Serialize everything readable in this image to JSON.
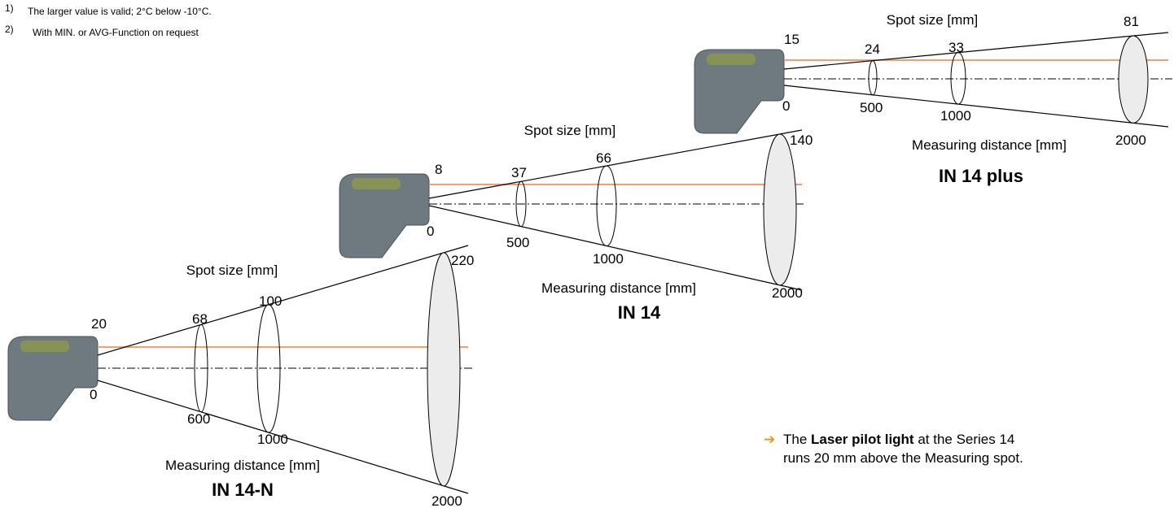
{
  "footnotes": [
    {
      "marker": "1)",
      "text": "The larger value is valid; 2°C below -10°C."
    },
    {
      "marker": "2)",
      "text": "With MIN. or AVG-Function on request"
    }
  ],
  "diagrams": [
    {
      "model": "IN 14-N",
      "spot_label": "Spot size [mm]",
      "distance_label": "Measuring distance [mm]",
      "spot_sizes": [
        20,
        68,
        100,
        220
      ],
      "distances": [
        0,
        600,
        1000,
        2000
      ]
    },
    {
      "model": "IN 14",
      "spot_label": "Spot size [mm]",
      "distance_label": "Measuring distance [mm]",
      "spot_sizes": [
        8,
        37,
        66,
        140
      ],
      "distances": [
        0,
        500,
        1000,
        2000
      ]
    },
    {
      "model": "IN 14 plus",
      "spot_label": "Spot size [mm]",
      "distance_label": "Measuring distance [mm]",
      "spot_sizes": [
        15,
        24,
        33,
        81
      ],
      "distances": [
        0,
        500,
        1000,
        2000
      ]
    }
  ],
  "note": {
    "parts": [
      "The ",
      "Laser pilot light",
      " at the Series 14",
      "runs 20 mm above the Measuring spot."
    ]
  }
}
